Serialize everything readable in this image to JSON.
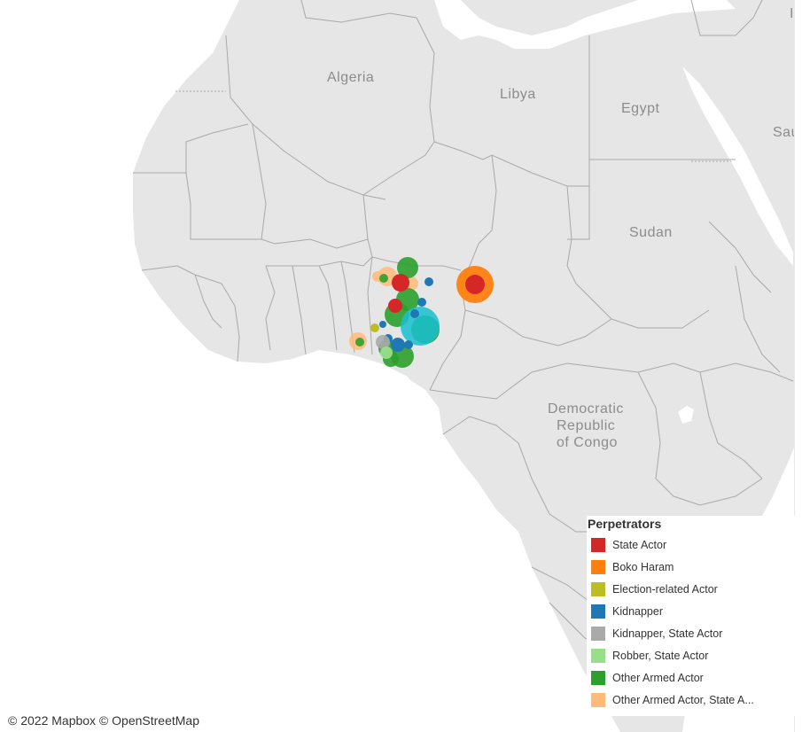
{
  "map": {
    "countries": [
      {
        "name": "Algeria"
      },
      {
        "name": "Libya"
      },
      {
        "name": "Egypt"
      },
      {
        "name": "Sudan"
      },
      {
        "name": "Democratic Republic of Congo",
        "lines": [
          "Democratic",
          "Republic",
          "of Congo"
        ]
      },
      {
        "name": "Sau"
      },
      {
        "name": "I"
      }
    ],
    "colors": {
      "land": "#e6e6e6",
      "water": "#ffffff",
      "border": "#a9a9a9",
      "label": "#8c8c8c"
    }
  },
  "legend": {
    "title": "Perpetrators",
    "items": [
      {
        "label": "State Actor",
        "color": "#d62728"
      },
      {
        "label": "Boko Haram",
        "color": "#ff7f0e"
      },
      {
        "label": "Election-related Actor",
        "color": "#bcbd22"
      },
      {
        "label": "Kidnapper",
        "color": "#1f77b4"
      },
      {
        "label": "Kidnapper, State Actor",
        "color": "#aaaaaa"
      },
      {
        "label": "Robber, State Actor",
        "color": "#98df8a"
      },
      {
        "label": "Other Armed Actor",
        "color": "#2ca02c"
      },
      {
        "label": "Other Armed Actor, State A...",
        "color": "#ffbb78"
      }
    ]
  },
  "attribution": "© 2022 Mapbox  © OpenStreetMap"
}
